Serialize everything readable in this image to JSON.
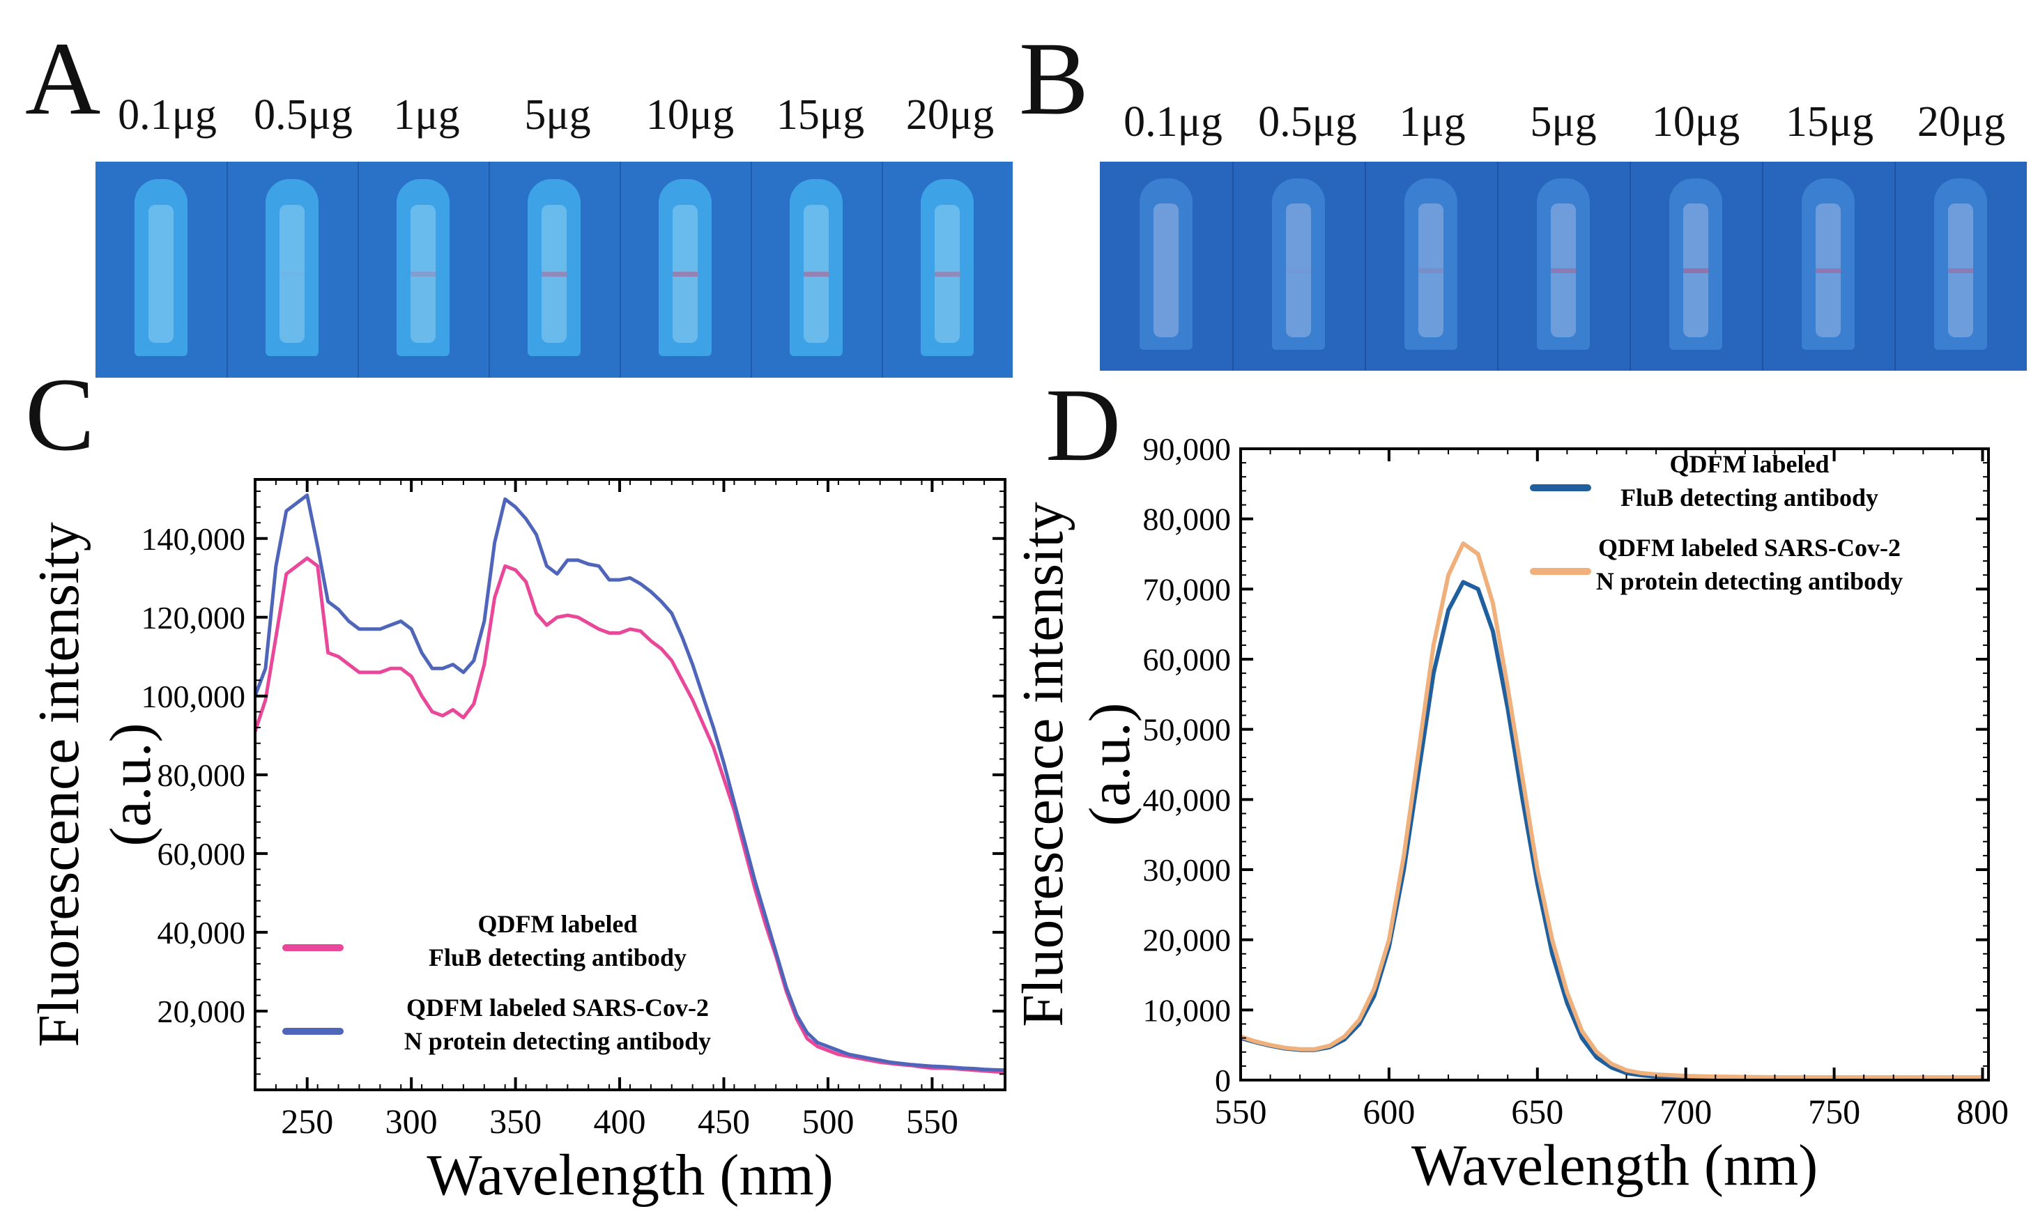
{
  "panel_letters": [
    "A",
    "B",
    "C",
    "D"
  ],
  "strips": [
    {
      "panel": "A",
      "doses": [
        "0.1μg",
        "0.5μg",
        "1μg",
        "5μg",
        "10μg",
        "15μg",
        "20μg"
      ],
      "line_intensity": [
        0.0,
        0.05,
        0.45,
        0.75,
        0.85,
        0.85,
        0.75
      ],
      "colors": {
        "background": "#2a72c8",
        "well": "#3da3e6",
        "pad": "#8fd0f2",
        "line": "#e8587a"
      }
    },
    {
      "panel": "B",
      "doses": [
        "0.1μg",
        "0.5μg",
        "1μg",
        "5μg",
        "10μg",
        "15μg",
        "20μg"
      ],
      "line_intensity": [
        0.0,
        0.05,
        0.3,
        0.65,
        0.8,
        0.7,
        0.65
      ],
      "colors": {
        "background": "#2766bc",
        "well": "#3a7fd0",
        "pad": "#9ab6e6",
        "line": "#e8587a"
      }
    }
  ],
  "chart_data": [
    {
      "panel": "C",
      "type": "line",
      "xlabel": "Wavelength (nm)",
      "ylabel_line1": "Fluorescence intensity",
      "ylabel_line2": "(a.u.)",
      "xlim": [
        225,
        585
      ],
      "ylim": [
        0,
        155000
      ],
      "xticks": [
        250,
        300,
        350,
        400,
        450,
        500,
        550
      ],
      "xtick_labels": [
        "250",
        "300",
        "350",
        "400",
        "450",
        "500",
        "550"
      ],
      "yticks": [
        20000,
        40000,
        60000,
        80000,
        100000,
        120000,
        140000
      ],
      "ytick_labels": [
        "20,000",
        "40,000",
        "60,000",
        "80,000",
        "100,000",
        "120,000",
        "140,000"
      ],
      "legend_position": "bottom-left",
      "series": [
        {
          "name_line1": "QDFM labeled",
          "name_line2": "FluB detecting antibody",
          "color": "#e8479a",
          "x": [
            225,
            230,
            235,
            240,
            245,
            250,
            255,
            260,
            265,
            270,
            275,
            280,
            285,
            290,
            295,
            300,
            305,
            310,
            315,
            320,
            325,
            330,
            335,
            340,
            345,
            350,
            355,
            360,
            365,
            370,
            375,
            380,
            385,
            390,
            395,
            400,
            405,
            410,
            415,
            420,
            425,
            430,
            435,
            440,
            445,
            450,
            455,
            460,
            465,
            470,
            475,
            480,
            485,
            490,
            495,
            500,
            505,
            510,
            515,
            520,
            525,
            530,
            535,
            540,
            545,
            550,
            555,
            560,
            565,
            570,
            575,
            580,
            585
          ],
          "y": [
            91000,
            99000,
            115000,
            131000,
            133000,
            135000,
            133000,
            111000,
            110000,
            108000,
            106000,
            106000,
            106000,
            107000,
            107000,
            105000,
            100000,
            96000,
            95000,
            96500,
            94500,
            98000,
            108000,
            125000,
            133000,
            132000,
            129000,
            121000,
            118000,
            120000,
            120500,
            120000,
            118500,
            117000,
            116000,
            116000,
            117000,
            116500,
            114000,
            112000,
            109000,
            104000,
            99000,
            93000,
            87000,
            79000,
            71000,
            61000,
            51000,
            42000,
            34000,
            25000,
            18000,
            13000,
            11000,
            10000,
            9000,
            8500,
            8000,
            7500,
            7000,
            6700,
            6400,
            6200,
            5800,
            5500,
            5500,
            5400,
            5200,
            5000,
            4800,
            4600,
            4500
          ]
        },
        {
          "name_line1": "QDFM labeled SARS-Cov-2",
          "name_line2": "N protein detecting antibody",
          "color": "#4f65b9",
          "x": [
            225,
            230,
            235,
            240,
            245,
            250,
            255,
            260,
            265,
            270,
            275,
            280,
            285,
            290,
            295,
            300,
            305,
            310,
            315,
            320,
            325,
            330,
            335,
            340,
            345,
            350,
            355,
            360,
            365,
            370,
            375,
            380,
            385,
            390,
            395,
            400,
            405,
            410,
            415,
            420,
            425,
            430,
            435,
            440,
            445,
            450,
            455,
            460,
            465,
            470,
            475,
            480,
            485,
            490,
            495,
            500,
            505,
            510,
            515,
            520,
            525,
            530,
            535,
            540,
            545,
            550,
            555,
            560,
            565,
            570,
            575,
            580,
            585
          ],
          "y": [
            100000,
            107000,
            133000,
            147000,
            149000,
            151000,
            138000,
            124000,
            122000,
            119000,
            117000,
            117000,
            117000,
            118000,
            119000,
            117000,
            111000,
            107000,
            107000,
            108000,
            106000,
            109000,
            119000,
            139000,
            150000,
            148000,
            145000,
            141000,
            133000,
            131000,
            134500,
            134500,
            133500,
            133000,
            129500,
            129500,
            130000,
            128500,
            126500,
            124000,
            121000,
            115000,
            108000,
            100000,
            92000,
            83000,
            73000,
            63000,
            53000,
            44000,
            35000,
            26000,
            19000,
            14500,
            12000,
            11000,
            10000,
            9000,
            8500,
            8000,
            7500,
            7000,
            6700,
            6400,
            6200,
            6000,
            5900,
            5700,
            5500,
            5400,
            5200,
            5100,
            5000
          ]
        }
      ]
    },
    {
      "panel": "D",
      "type": "line",
      "xlabel": "Wavelength (nm)",
      "ylabel_line1": "Fluorescence intensity",
      "ylabel_line2": "(a.u.)",
      "xlim": [
        550,
        802
      ],
      "ylim": [
        0,
        90000
      ],
      "xticks": [
        550,
        600,
        650,
        700,
        750,
        800
      ],
      "xtick_labels": [
        "550",
        "600",
        "650",
        "700",
        "750",
        "800"
      ],
      "yticks": [
        0,
        10000,
        20000,
        30000,
        40000,
        50000,
        60000,
        70000,
        80000,
        90000
      ],
      "ytick_labels": [
        "0",
        "10,000",
        "20,000",
        "30,000",
        "40,000",
        "50,000",
        "60,000",
        "70,000",
        "80,000",
        "90,000"
      ],
      "legend_position": "top-right",
      "series": [
        {
          "name_line1": "QDFM labeled",
          "name_line2": "FluB detecting antibody",
          "color": "#1f5f9e",
          "x": [
            550,
            555,
            560,
            565,
            570,
            575,
            580,
            585,
            590,
            595,
            600,
            605,
            610,
            615,
            620,
            625,
            630,
            635,
            640,
            645,
            650,
            655,
            660,
            665,
            670,
            675,
            680,
            685,
            690,
            695,
            700,
            710,
            720,
            730,
            740,
            750,
            760,
            770,
            780,
            790,
            800
          ],
          "y": [
            6000,
            5400,
            4900,
            4500,
            4300,
            4300,
            4700,
            5800,
            8000,
            12000,
            19000,
            30000,
            44000,
            58000,
            67000,
            71000,
            70000,
            64000,
            53000,
            40000,
            28000,
            18000,
            11000,
            6000,
            3200,
            1800,
            1000,
            700,
            500,
            400,
            300,
            250,
            200,
            200,
            200,
            200,
            200,
            200,
            200,
            200,
            200
          ]
        },
        {
          "name_line1": "QDFM labeled SARS-Cov-2",
          "name_line2": "N protein detecting antibody",
          "color": "#f0b07c",
          "x": [
            550,
            555,
            560,
            565,
            570,
            575,
            580,
            585,
            590,
            595,
            600,
            605,
            610,
            615,
            620,
            625,
            630,
            635,
            640,
            645,
            650,
            655,
            660,
            665,
            670,
            675,
            680,
            685,
            690,
            695,
            700,
            710,
            720,
            730,
            740,
            750,
            760,
            770,
            780,
            790,
            800
          ],
          "y": [
            6200,
            5500,
            5000,
            4600,
            4400,
            4400,
            4900,
            6200,
            8600,
            13000,
            20000,
            32000,
            47000,
            62000,
            72000,
            76500,
            75000,
            68000,
            56000,
            43000,
            30000,
            20000,
            12500,
            7000,
            4000,
            2300,
            1400,
            1000,
            800,
            700,
            600,
            500,
            450,
            400,
            400,
            400,
            400,
            400,
            400,
            400,
            400
          ]
        }
      ]
    }
  ]
}
